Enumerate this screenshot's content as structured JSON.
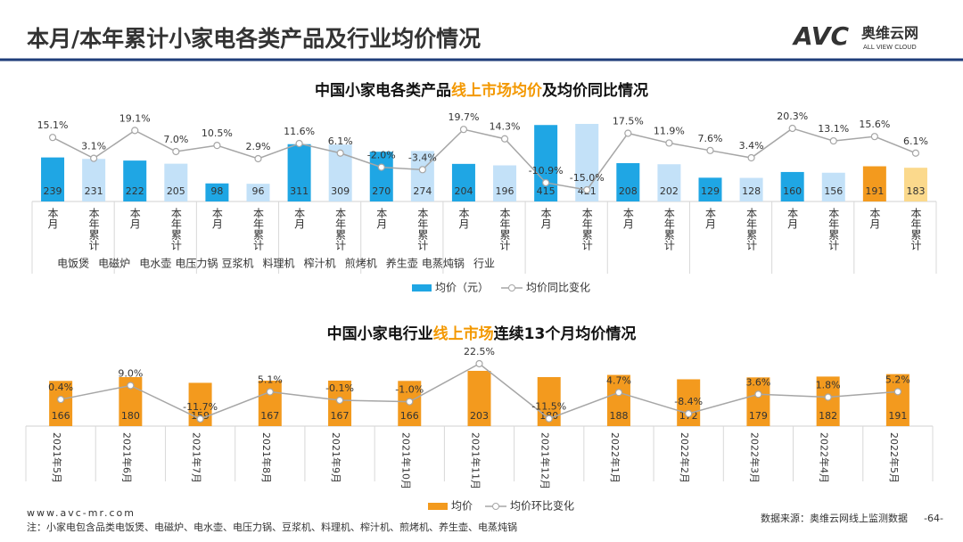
{
  "header": {
    "title": "本月/本年累计小家电各类产品及行业均价情况",
    "logo_brand": "AVC",
    "logo_name": "奥维云网",
    "logo_sub": "ALL VIEW CLOUD"
  },
  "footer": {
    "website": "www.avc-mr.com",
    "note": "注：小家电包含品类电饭煲、电磁炉、电水壶、电压力锅、豆浆机、料理机、榨汁机、煎烤机、养生壶、电蒸炖锅",
    "source": "数据来源：奥维云网线上监测数据",
    "page": "-64-"
  },
  "chart_data": [
    {
      "type": "bar_line",
      "title_parts": [
        "中国小家电各类产品",
        "线上市场均价",
        "及均价同比情况"
      ],
      "title_highlight_color": "#f39800",
      "groups": [
        "电饭煲",
        "电磁炉",
        "电水壶",
        "电压力锅",
        "豆浆机",
        "料理机",
        "榨汁机",
        "煎烤机",
        "养生壶",
        "电蒸炖锅",
        "行业"
      ],
      "subcategories": [
        "本月",
        "本年累计"
      ],
      "series": [
        {
          "name": "均价（元）",
          "color": "#1fa6e4",
          "colors": [
            "#1fa6e4",
            "#c3e1f8",
            "#1fa6e4",
            "#c3e1f8",
            "#1fa6e4",
            "#c3e1f8",
            "#1fa6e4",
            "#c3e1f8",
            "#1fa6e4",
            "#c3e1f8",
            "#1fa6e4",
            "#c3e1f8",
            "#1fa6e4",
            "#c3e1f8",
            "#1fa6e4",
            "#c3e1f8",
            "#1fa6e4",
            "#c3e1f8",
            "#1fa6e4",
            "#c3e1f8",
            "#f39a1e",
            "#fbd98c"
          ],
          "values": [
            239,
            231,
            222,
            205,
            98,
            96,
            311,
            309,
            270,
            274,
            204,
            196,
            415,
            421,
            208,
            202,
            129,
            128,
            160,
            156,
            191,
            183
          ]
        },
        {
          "name": "均价同比变化",
          "color": "#a6a6a6",
          "axis": "y2",
          "values": [
            15.1,
            3.1,
            19.1,
            7.0,
            10.5,
            2.9,
            11.6,
            6.1,
            -2.0,
            -3.4,
            19.7,
            14.3,
            -10.9,
            -15.0,
            17.5,
            11.9,
            7.6,
            3.4,
            20.3,
            13.1,
            15.6,
            6.1
          ],
          "value_labels": [
            "15.1%",
            "3.1%",
            "19.1%",
            "7.0%",
            "10.5%",
            "2.9%",
            "11.6%",
            "6.1%",
            "-2.0%",
            "-3.4%",
            "19.7%",
            "14.3%",
            "-10.9%",
            "-15.0%",
            "17.5%",
            "11.9%",
            "7.6%",
            "3.4%",
            "20.3%",
            "13.1%",
            "15.6%",
            "6.1%"
          ]
        }
      ],
      "legend": "bottom"
    },
    {
      "type": "bar_line",
      "title_parts": [
        "中国小家电行业",
        "线上市场",
        "连续13个月均价情况"
      ],
      "title_highlight_color": "#f39800",
      "categories": [
        "2021年5月",
        "2021年6月",
        "2021年7月",
        "2021年8月",
        "2021年9月",
        "2021年10月",
        "2021年11月",
        "2021年12月",
        "2022年1月",
        "2022年2月",
        "2022年3月",
        "2022年4月",
        "2022年5月"
      ],
      "series": [
        {
          "name": "均价",
          "color": "#f39a1e",
          "values": [
            166,
            180,
            159,
            167,
            167,
            166,
            203,
            180,
            188,
            172,
            179,
            182,
            191
          ]
        },
        {
          "name": "均价环比变化",
          "color": "#a6a6a6",
          "axis": "y2",
          "values": [
            0.4,
            9.0,
            -11.7,
            5.1,
            -0.1,
            -1.0,
            22.5,
            -11.5,
            4.7,
            -8.4,
            3.6,
            1.8,
            5.2
          ],
          "value_labels": [
            "0.4%",
            "9.0%",
            "-11.7%",
            "5.1%",
            "-0.1%",
            "-1.0%",
            "22.5%",
            "-11.5%",
            "4.7%",
            "-8.4%",
            "3.6%",
            "1.8%",
            "5.2%"
          ]
        }
      ],
      "legend": "bottom"
    }
  ]
}
